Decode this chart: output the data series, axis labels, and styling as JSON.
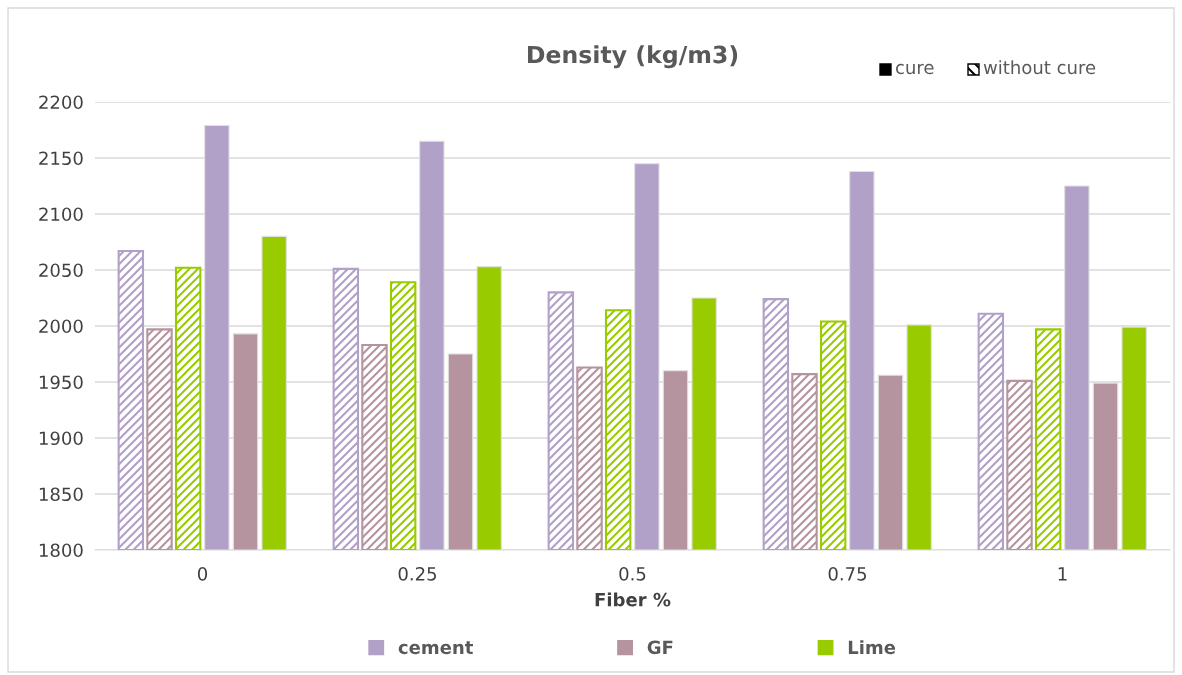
{
  "chart_data": {
    "type": "bar",
    "title": "Density (kg/m3)",
    "xlabel": "Fiber %",
    "categories": [
      "0",
      "0.25",
      "0.5",
      "0.75",
      "1"
    ],
    "series": [
      {
        "color": "#b1a0c7",
        "values": [
          2067,
          2051,
          2030,
          2024,
          2011
        ]
      },
      {
        "color": "#b5949f",
        "values": [
          1997,
          1983,
          1963,
          1957,
          1951
        ]
      },
      {
        "color": "#99cc00",
        "values": [
          2052,
          2039,
          2014,
          2004,
          1997
        ]
      },
      {
        "name": "cement",
        "color": "#b1a0c7",
        "values": [
          2179,
          2165,
          2145,
          2138,
          2125
        ]
      },
      {
        "name": "GF",
        "color": "#b5949f",
        "values": [
          1993,
          1975,
          1960,
          1956,
          1949
        ]
      },
      {
        "name": "Lime",
        "color": "#99cc00",
        "values": [
          2080,
          2053,
          2025,
          2001,
          1999
        ]
      }
    ],
    "ylim": [
      1800,
      2200
    ],
    "yticks": [
      1800,
      1850,
      1900,
      1950,
      2000,
      2050,
      2100,
      2150,
      2200
    ],
    "grid": "y",
    "legend": "bottom",
    "annotations": [
      "cure",
      "without cure"
    ]
  }
}
